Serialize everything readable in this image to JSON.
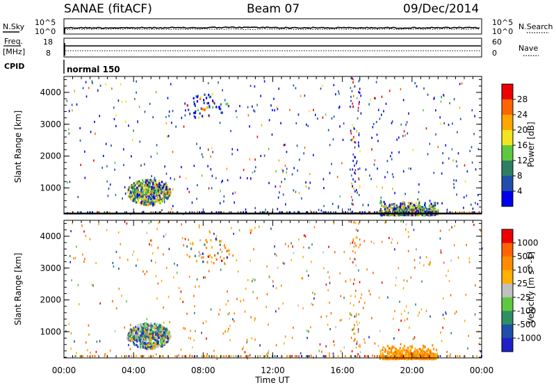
{
  "header": {
    "title": "SANAE (fitACF)",
    "beam": "Beam 07",
    "date": "09/Dec/2014"
  },
  "noise_panel": {
    "left_label": "N.Sky",
    "right_label": "N.Search",
    "left_ticks": [
      "10^5",
      "10^0"
    ],
    "right_ticks": [
      "10^5",
      "10^0"
    ]
  },
  "freq_panel": {
    "left_label_1": "Freq.",
    "left_label_2": "[MHz]",
    "right_label": "Nave",
    "left_ticks": [
      "18",
      "8"
    ],
    "right_ticks": [
      "60",
      "0"
    ]
  },
  "cpid": {
    "label": "CPID",
    "program": "normal 150"
  },
  "xaxis": {
    "title": "Time UT",
    "ticks": [
      "00:00",
      "04:00",
      "08:00",
      "12:00",
      "16:00",
      "20:00",
      "00:00"
    ]
  },
  "colors": {
    "power": [
      "#0000ee",
      "#1f4fa8",
      "#2e7f62",
      "#5ec940",
      "#f2e41e",
      "#ffa500",
      "#ff6400",
      "#ee0000"
    ],
    "velocity": [
      "#ee0000",
      "#ff6400",
      "#ff8c00",
      "#ffb000",
      "#c0c0c0",
      "#5ec940",
      "#2e8f62",
      "#1f4fa8",
      "#2020c8"
    ]
  },
  "chart_data": [
    {
      "type": "heatmap",
      "name": "power",
      "ylabel": "Slant Range [km]",
      "ylim": [
        180,
        4500
      ],
      "yticks": [
        "1000",
        "2000",
        "3000",
        "4000"
      ],
      "xlim_hours": [
        0,
        24
      ],
      "colorbar_label": "Power [dB]",
      "colorbar_ticks": [
        "4",
        "8",
        "12",
        "16",
        "20",
        "24",
        "28"
      ],
      "clusters": [
        {
          "t0": 3.6,
          "t1": 6.1,
          "r0": 450,
          "r1": 1350,
          "dense": true
        },
        {
          "t0": 18.1,
          "t1": 21.5,
          "r0": 180,
          "r1": 650,
          "dense": true
        },
        {
          "t0": 7.0,
          "t1": 9.5,
          "r0": 3150,
          "r1": 4000,
          "dense": false
        }
      ]
    },
    {
      "type": "heatmap",
      "name": "velocity",
      "ylabel": "Slant Range [km]",
      "ylim": [
        180,
        4500
      ],
      "yticks": [
        "1000",
        "2000",
        "3000",
        "4000"
      ],
      "xlim_hours": [
        0,
        24
      ],
      "colorbar_label": "Velocity [m s^-1]",
      "colorbar_ticks": [
        "1000",
        "500",
        "100",
        "25",
        "-25",
        "-100",
        "-500",
        "-1000"
      ],
      "clusters": [
        {
          "t0": 3.6,
          "t1": 6.1,
          "r0": 450,
          "r1": 1350,
          "dense": true
        },
        {
          "t0": 18.1,
          "t1": 21.5,
          "r0": 180,
          "r1": 650,
          "dense": true
        },
        {
          "t0": 7.0,
          "t1": 9.5,
          "r0": 3150,
          "r1": 4000,
          "dense": false
        }
      ]
    }
  ]
}
